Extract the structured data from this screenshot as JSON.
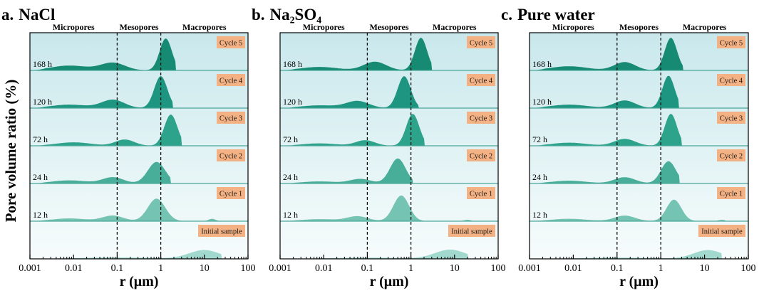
{
  "figure": {
    "ylabel": "Pore volume ratio (%)",
    "xlabel": "r (μm)",
    "region_labels": [
      "Micropores",
      "Mesopores",
      "Macropores"
    ],
    "x_ticks": [
      "0.001",
      "0.01",
      "0.1",
      "1",
      "10",
      "100"
    ],
    "dashed_lines_at": [
      0.1,
      1
    ]
  },
  "chart_data": [
    {
      "type": "area",
      "panel_letter": "a.",
      "title": "NaCl",
      "xlabel": "r (μm)",
      "xscale": "log",
      "xlim": [
        0.001,
        100
      ],
      "rows": [
        {
          "cycle": "Cycle 5",
          "time": "168 h",
          "peaks": [
            [
              0.008,
              0.14,
              0.42
            ],
            [
              0.08,
              0.22,
              0.28
            ],
            [
              1.3,
              0.92,
              0.14
            ]
          ],
          "tail": 2.2
        },
        {
          "cycle": "Cycle 4",
          "time": "120 h",
          "peaks": [
            [
              0.008,
              0.1,
              0.42
            ],
            [
              0.08,
              0.24,
              0.26
            ],
            [
              1.0,
              0.92,
              0.15
            ]
          ],
          "tail": 1.9
        },
        {
          "cycle": "Cycle 3",
          "time": "72 h",
          "peaks": [
            [
              0.01,
              0.1,
              0.4
            ],
            [
              0.15,
              0.18,
              0.22
            ],
            [
              1.7,
              0.9,
              0.15
            ]
          ],
          "tail": 3.0
        },
        {
          "cycle": "Cycle 2",
          "time": "24 h",
          "peaks": [
            [
              0.008,
              0.09,
              0.4
            ],
            [
              0.08,
              0.18,
              0.24
            ],
            [
              0.8,
              0.62,
              0.2
            ]
          ],
          "tail": 1.7
        },
        {
          "cycle": "Cycle 1",
          "time": "12 h",
          "peaks": [
            [
              0.008,
              0.08,
              0.4
            ],
            [
              0.08,
              0.16,
              0.24
            ],
            [
              0.8,
              0.65,
              0.2
            ],
            [
              15,
              0.07,
              0.08
            ]
          ],
          "tail": 25
        },
        {
          "cycle": "Initial sample",
          "time": "",
          "peaks": [
            [
              0.1,
              0.07,
              0.9
            ],
            [
              10,
              0.42,
              0.35
            ]
          ],
          "tail": 25
        }
      ]
    },
    {
      "type": "area",
      "panel_letter": "b.",
      "title": "Na₂SO₄",
      "xlabel": "r (μm)",
      "xscale": "log",
      "xlim": [
        0.001,
        100
      ],
      "rows": [
        {
          "cycle": "Cycle 5",
          "time": "168 h",
          "peaks": [
            [
              0.008,
              0.1,
              0.42
            ],
            [
              0.15,
              0.25,
              0.26
            ],
            [
              1.7,
              0.94,
              0.14
            ]
          ],
          "tail": 3.0
        },
        {
          "cycle": "Cycle 4",
          "time": "120 h",
          "peaks": [
            [
              0.008,
              0.08,
              0.42
            ],
            [
              0.06,
              0.2,
              0.26
            ],
            [
              0.7,
              0.92,
              0.15
            ]
          ],
          "tail": 1.5
        },
        {
          "cycle": "Cycle 3",
          "time": "72 h",
          "peaks": [
            [
              0.008,
              0.07,
              0.4
            ],
            [
              0.09,
              0.16,
              0.22
            ],
            [
              1.1,
              0.92,
              0.15
            ]
          ],
          "tail": 2.0
        },
        {
          "cycle": "Cycle 2",
          "time": "24 h",
          "peaks": [
            [
              0.008,
              0.06,
              0.4
            ],
            [
              0.07,
              0.13,
              0.24
            ],
            [
              0.5,
              0.72,
              0.18
            ]
          ],
          "tail": 1.1
        },
        {
          "cycle": "Cycle 1",
          "time": "12 h",
          "peaks": [
            [
              0.008,
              0.06,
              0.4
            ],
            [
              0.06,
              0.14,
              0.24
            ],
            [
              0.6,
              0.74,
              0.18
            ],
            [
              20,
              0.04,
              0.08
            ]
          ],
          "tail": 25
        },
        {
          "cycle": "Initial sample",
          "time": "",
          "peaks": [
            [
              0.1,
              0.06,
              0.9
            ],
            [
              8,
              0.44,
              0.35
            ]
          ],
          "tail": 20
        }
      ]
    },
    {
      "type": "area",
      "panel_letter": "c.",
      "title": "Pure water",
      "xlabel": "r (μm)",
      "xscale": "log",
      "xlim": [
        0.001,
        100
      ],
      "rows": [
        {
          "cycle": "Cycle 5",
          "time": "168 h",
          "peaks": [
            [
              0.008,
              0.12,
              0.42
            ],
            [
              0.15,
              0.24,
              0.24
            ],
            [
              1.7,
              0.94,
              0.14
            ]
          ],
          "tail": 3.2
        },
        {
          "cycle": "Cycle 4",
          "time": "120 h",
          "peaks": [
            [
              0.008,
              0.1,
              0.42
            ],
            [
              0.15,
              0.22,
              0.24
            ],
            [
              1.5,
              0.93,
              0.14
            ]
          ],
          "tail": 2.6
        },
        {
          "cycle": "Cycle 3",
          "time": "72 h",
          "peaks": [
            [
              0.008,
              0.09,
              0.4
            ],
            [
              0.15,
              0.2,
              0.24
            ],
            [
              1.7,
              0.92,
              0.14
            ]
          ],
          "tail": 3.0
        },
        {
          "cycle": "Cycle 2",
          "time": "24 h",
          "peaks": [
            [
              0.008,
              0.08,
              0.4
            ],
            [
              0.15,
              0.18,
              0.24
            ],
            [
              1.5,
              0.64,
              0.17
            ]
          ],
          "tail": 2.7
        },
        {
          "cycle": "Cycle 1",
          "time": "12 h",
          "peaks": [
            [
              0.008,
              0.07,
              0.4
            ],
            [
              0.15,
              0.16,
              0.24
            ],
            [
              2.0,
              0.62,
              0.17
            ],
            [
              25,
              0.04,
              0.08
            ]
          ],
          "tail": 30
        },
        {
          "cycle": "Initial sample",
          "time": "",
          "peaks": [
            [
              0.1,
              0.06,
              0.9
            ],
            [
              12,
              0.42,
              0.33
            ]
          ],
          "tail": 25
        }
      ]
    }
  ],
  "colors": {
    "row_fills": [
      "#178a73",
      "#1e9580",
      "#2ea38c",
      "#49ae99",
      "#75c3b2",
      "#a2d9ce"
    ],
    "bg_top": "#c9e8ec",
    "bg_bottom": "#f7fcfc",
    "separator": "#4aa79a",
    "badge": "#f4b183",
    "badge_text": "#1a1a1a"
  }
}
